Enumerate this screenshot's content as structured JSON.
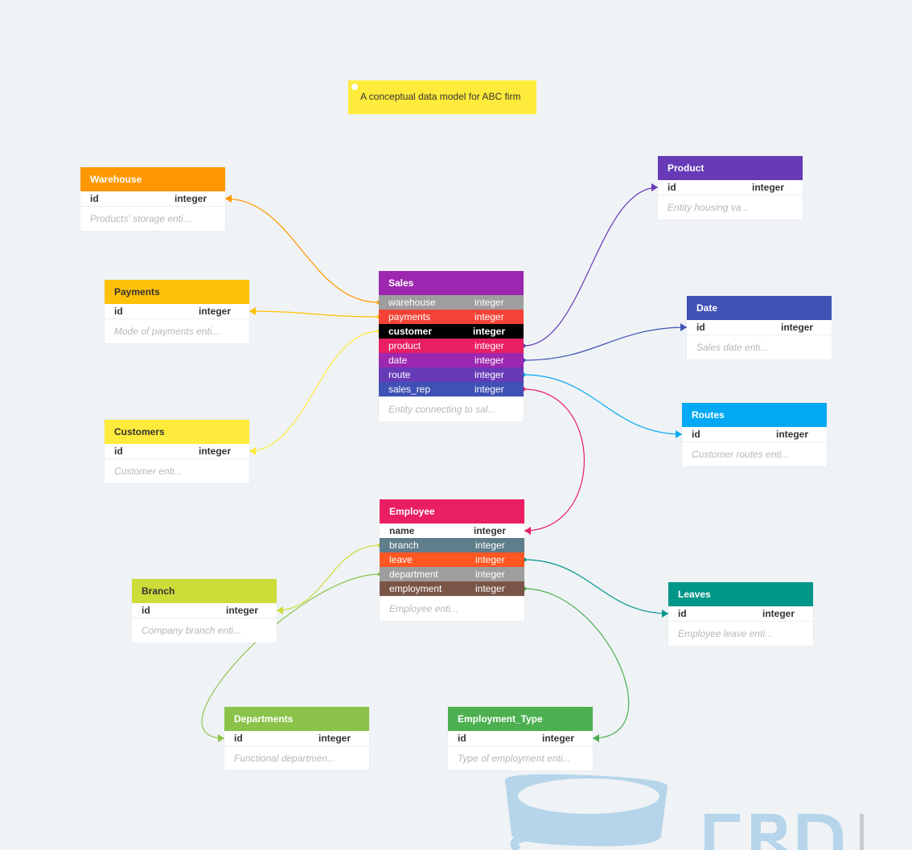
{
  "note": {
    "text": "A conceptual data model for ABC firm"
  },
  "tables": {
    "warehouse": {
      "title": "Warehouse",
      "color": "#ff9800",
      "rows": [
        {
          "name": "id",
          "type": "integer"
        }
      ],
      "description": "Products' storage enti..."
    },
    "payments": {
      "title": "Payments",
      "color": "#ffc107",
      "rows": [
        {
          "name": "id",
          "type": "integer"
        }
      ],
      "description": "Mode of payments enti..."
    },
    "customers": {
      "title": "Customers",
      "color": "#ffeb3b",
      "rows": [
        {
          "name": "id",
          "type": "integer"
        }
      ],
      "description": "Customer enti..."
    },
    "product": {
      "title": "Product",
      "color": "#673ab7",
      "rows": [
        {
          "name": "id",
          "type": "integer"
        }
      ],
      "description": "Entity housing va..."
    },
    "date": {
      "title": "Date",
      "color": "#3f51b5",
      "rows": [
        {
          "name": "id",
          "type": "integer"
        }
      ],
      "description": "Sales date enti..."
    },
    "routes": {
      "title": "Routes",
      "color": "#03a9f4",
      "rows": [
        {
          "name": "id",
          "type": "integer"
        }
      ],
      "description": "Customer routes enti..."
    },
    "sales": {
      "title": "Sales",
      "color": "#9c27b0",
      "rows": [
        {
          "name": "warehouse",
          "type": "integer",
          "color": "#9e9e9e"
        },
        {
          "name": "payments",
          "type": "integer",
          "color": "#f44336"
        },
        {
          "name": "customer",
          "type": "integer",
          "color": "#000000"
        },
        {
          "name": "product",
          "type": "integer",
          "color": "#e91e63"
        },
        {
          "name": "date",
          "type": "integer",
          "color": "#9c27b0"
        },
        {
          "name": "route",
          "type": "integer",
          "color": "#673ab7"
        },
        {
          "name": "sales_rep",
          "type": "integer",
          "color": "#3f51b5"
        }
      ],
      "description": "Entity connecting to sal..."
    },
    "employee": {
      "title": "Employee",
      "color": "#e91e63",
      "rows": [
        {
          "name": "name",
          "type": "integer"
        },
        {
          "name": "branch",
          "type": "integer",
          "color": "#607d8b"
        },
        {
          "name": "leave",
          "type": "integer",
          "color": "#ff5722"
        },
        {
          "name": "department",
          "type": "integer",
          "color": "#9e9e9e"
        },
        {
          "name": "employment",
          "type": "integer",
          "color": "#795548"
        }
      ],
      "description": "Employee enti..."
    },
    "branch": {
      "title": "Branch",
      "color": "#cddc39",
      "rows": [
        {
          "name": "id",
          "type": "integer"
        }
      ],
      "description": "Company branch enti..."
    },
    "leaves": {
      "title": "Leaves",
      "color": "#009688",
      "rows": [
        {
          "name": "id",
          "type": "integer"
        }
      ],
      "description": "Employee leave enti..."
    },
    "departments": {
      "title": "Departments",
      "color": "#8bc34a",
      "rows": [
        {
          "name": "id",
          "type": "integer"
        }
      ],
      "description": "Functional departmen..."
    },
    "employment_type": {
      "title": "Employment_Type",
      "color": "#4caf50",
      "rows": [
        {
          "name": "id",
          "type": "integer"
        }
      ],
      "description": "Type of employment enti..."
    }
  },
  "relationships": [
    {
      "from": "sales.warehouse",
      "to": "warehouse.id",
      "color": "#ff9800"
    },
    {
      "from": "sales.payments",
      "to": "payments.id",
      "color": "#ffc107"
    },
    {
      "from": "sales.customer",
      "to": "customers.id",
      "color": "#ffeb3b"
    },
    {
      "from": "sales.product",
      "to": "product.id",
      "color": "#673ab7"
    },
    {
      "from": "sales.date",
      "to": "date.id",
      "color": "#3f51b5"
    },
    {
      "from": "sales.route",
      "to": "routes.id",
      "color": "#03a9f4"
    },
    {
      "from": "sales.sales_rep",
      "to": "employee.name",
      "color": "#e91e63"
    },
    {
      "from": "employee.branch",
      "to": "branch.id",
      "color": "#cddc39"
    },
    {
      "from": "employee.leave",
      "to": "leaves.id",
      "color": "#009688"
    },
    {
      "from": "employee.department",
      "to": "departments.id",
      "color": "#8bc34a"
    },
    {
      "from": "employee.employment",
      "to": "employment_type.id",
      "color": "#4caf50"
    }
  ]
}
